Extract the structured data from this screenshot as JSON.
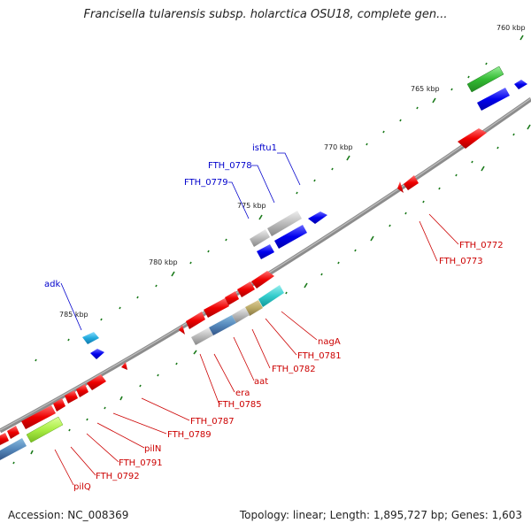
{
  "title": "Francisella tularensis subsp. holarctica OSU18, complete gen...",
  "footer": {
    "accession": "Accession: NC_008369",
    "summary": "Topology: linear; Length: 1,895,727 bp; Genes: 1,603"
  },
  "ticks": [
    "760 kbp",
    "765 kbp",
    "770 kbp",
    "775 kbp",
    "780 kbp",
    "785 kbp"
  ],
  "labels_blue": [
    "isftu1",
    "FTH_0778",
    "FTH_0779",
    "adk"
  ],
  "labels_red": [
    "FTH_0772",
    "FTH_0773",
    "nagA",
    "FTH_0781",
    "FTH_0782",
    "aat",
    "era",
    "FTH_0785",
    "FTH_0787",
    "FTH_0789",
    "pilN",
    "FTH_0791",
    "FTH_0792",
    "pilQ"
  ],
  "colors": {
    "backbone": "#8c8c8c",
    "forward_cds": "#ee0000",
    "reverse_cds": "#0000ee",
    "pseudo": "#bbbbbb",
    "tick_mark": "#1a7a1a",
    "rna_green": "#33bb33",
    "lime": "#aaee44",
    "cyan": "#33cccc",
    "steel": "#5588bb",
    "olive": "#bbaa66",
    "sky": "#22aadd",
    "label_red": "#cc0000",
    "label_blue": "#0000cc"
  }
}
